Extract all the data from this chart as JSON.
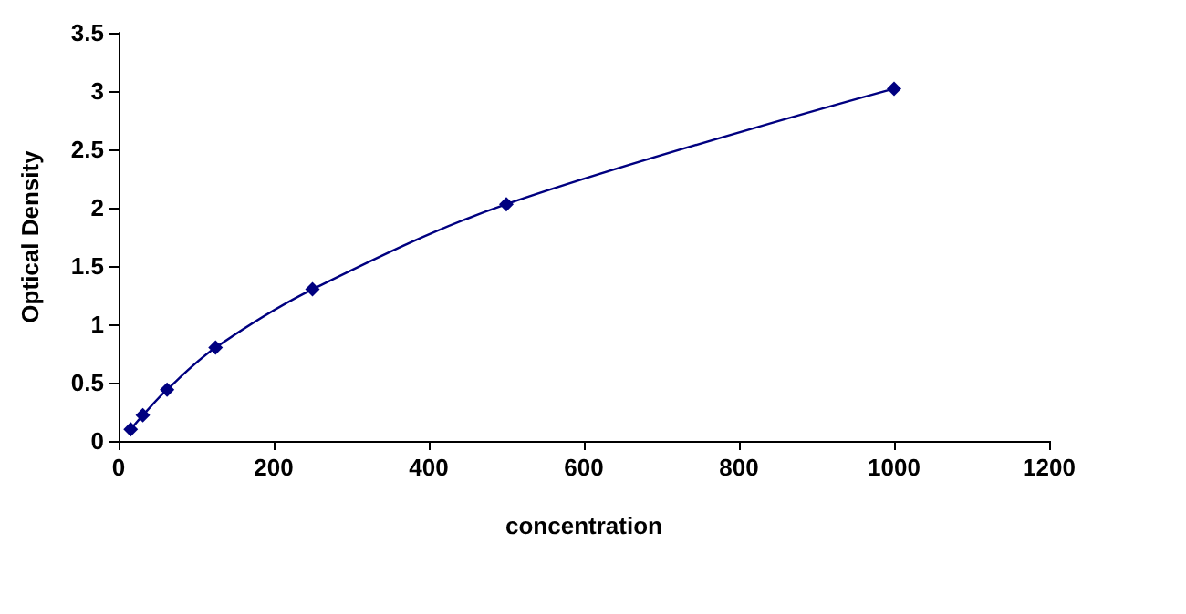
{
  "chart_data": {
    "type": "line",
    "xlabel": "concentration",
    "ylabel": "Optical Density",
    "series": [
      {
        "color": "#000080",
        "x": [
          15.6,
          31.25,
          62.5,
          125,
          250,
          500,
          1000
        ],
        "values": [
          0.1,
          0.22,
          0.44,
          0.8,
          1.3,
          2.03,
          3.02
        ]
      }
    ],
    "xlim": [
      0,
      1200
    ],
    "xticks": [
      0,
      200,
      400,
      600,
      800,
      1000,
      1200
    ],
    "ylim": [
      0,
      3.5
    ],
    "yticks": [
      0,
      0.5,
      1,
      1.5,
      2,
      2.5,
      3,
      3.5
    ],
    "grid": false,
    "marker": "diamond",
    "line_style": "solid"
  }
}
